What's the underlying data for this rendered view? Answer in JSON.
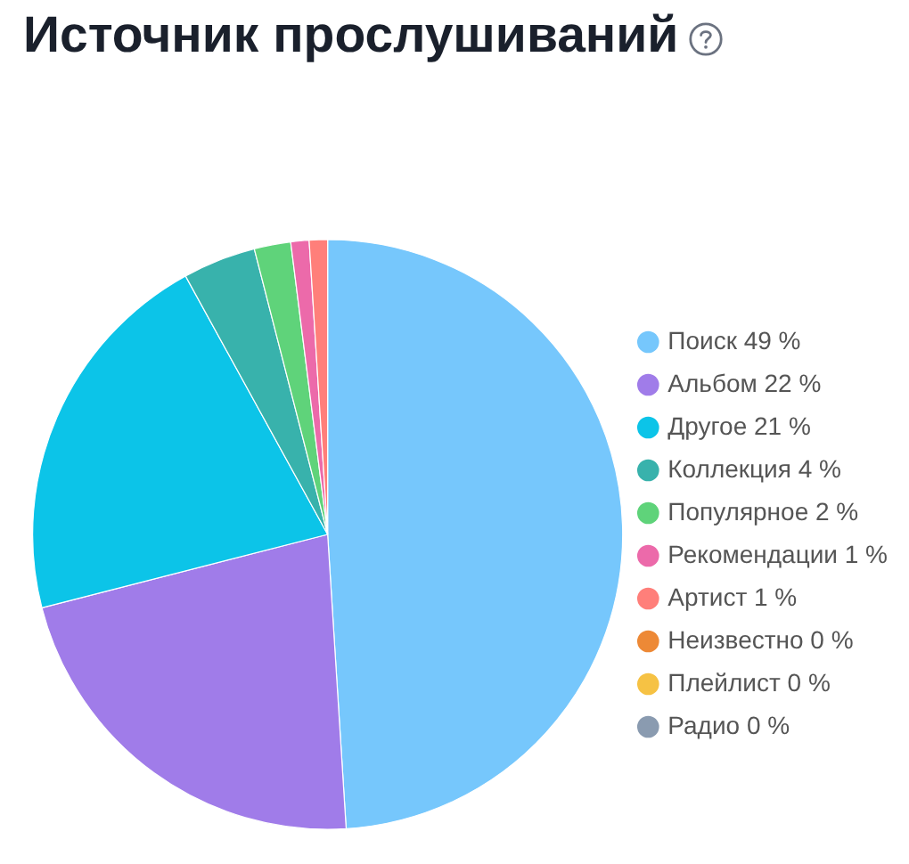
{
  "chart_data": {
    "type": "pie",
    "title": "Источник прослушиваний",
    "categories": [
      "Поиск",
      "Альбом",
      "Другое",
      "Коллекция",
      "Популярное",
      "Рекомендации",
      "Артист",
      "Неизвестно",
      "Плейлист",
      "Радио"
    ],
    "values": [
      49,
      22,
      21,
      4,
      2,
      1,
      1,
      0,
      0,
      0
    ],
    "value_labels": [
      "49 %",
      "22 %",
      "21 %",
      "4 %",
      "2 %",
      "1 %",
      "1 %",
      "0 %",
      "0 %",
      "0 %"
    ],
    "colors": [
      "#76c7fc",
      "#a07ce9",
      "#0cc4e8",
      "#38b2ac",
      "#5fd37a",
      "#ec6aaa",
      "#ff7f7a",
      "#ed8936",
      "#f6c244",
      "#8a9bb0"
    ],
    "legend": "right"
  }
}
